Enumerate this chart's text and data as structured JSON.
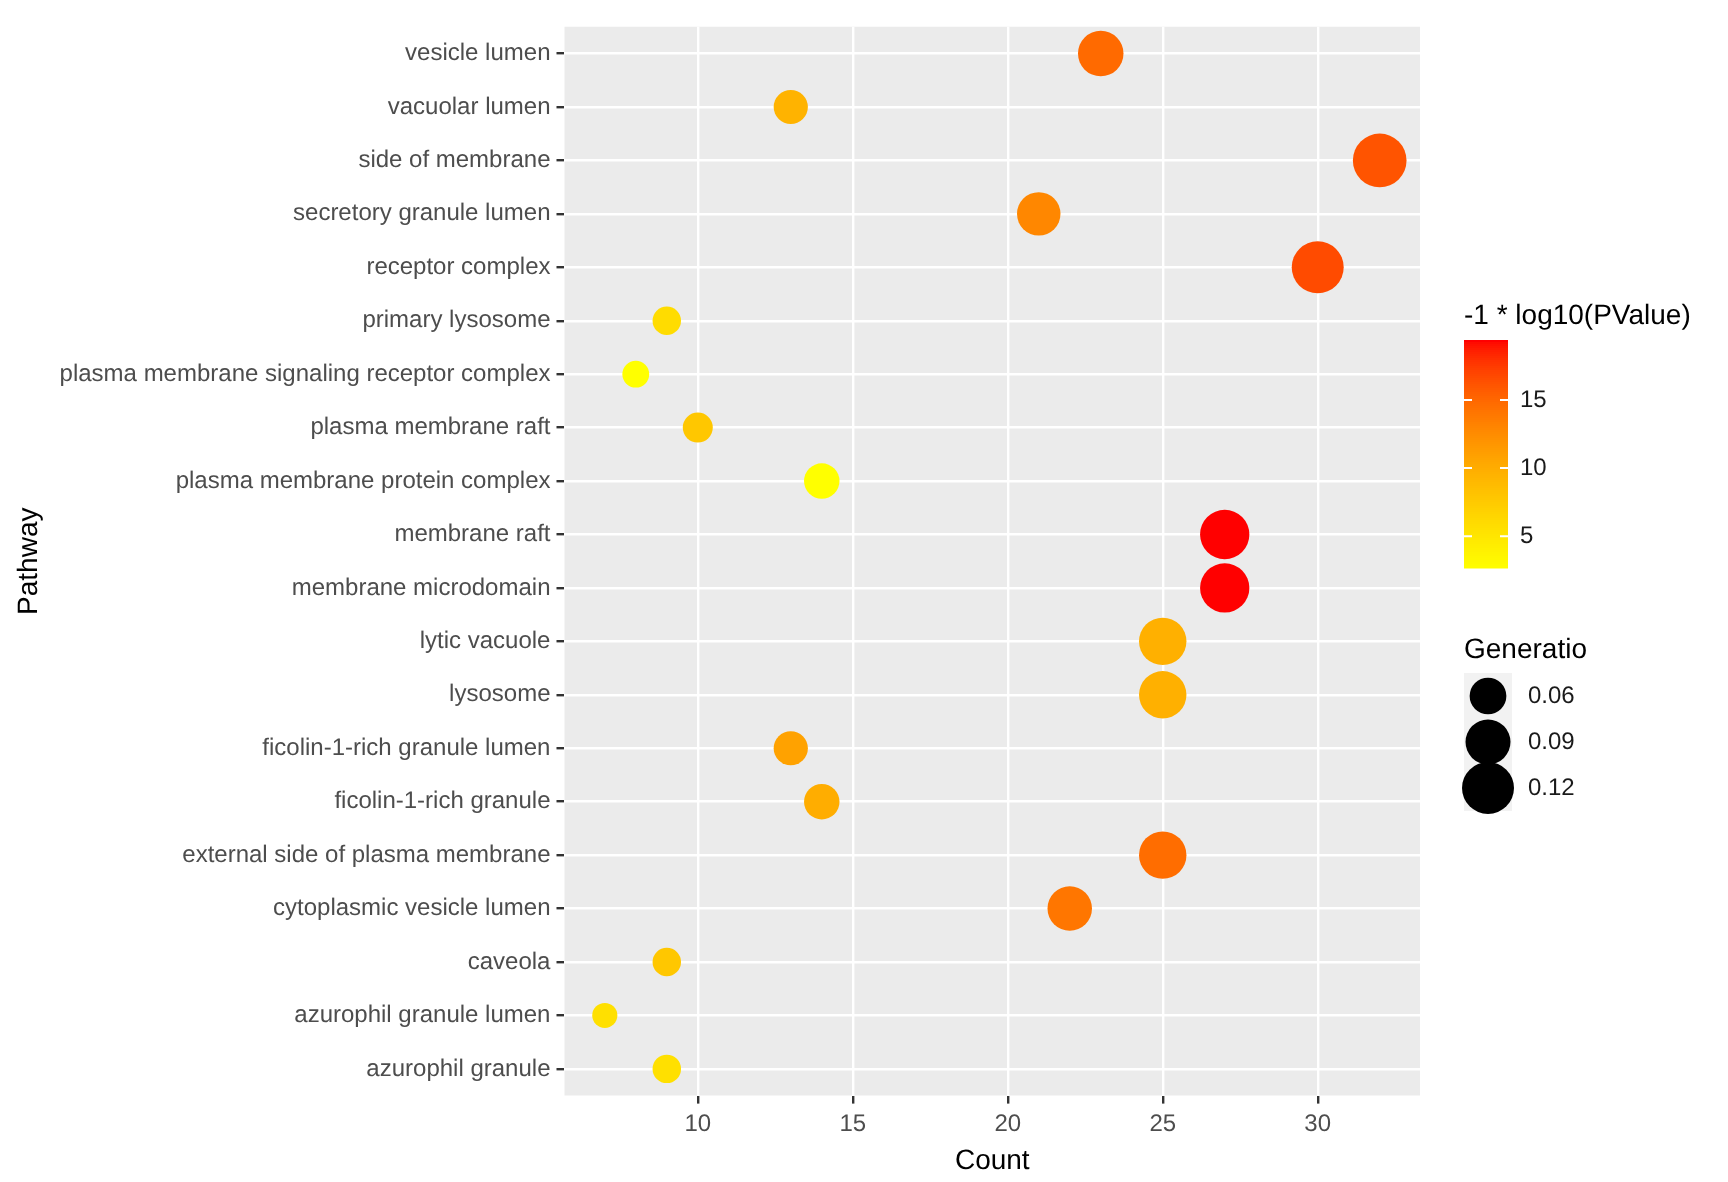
{
  "chart_data": {
    "type": "bubble",
    "xlabel": "Count",
    "ylabel": "Pathway",
    "clabel": "-1 * log10(PValue)",
    "legend_title": "Generatio",
    "categories": [
      "vesicle lumen",
      "vacuolar lumen",
      "side of membrane",
      "secretory granule lumen",
      "receptor complex",
      "primary lysosome",
      "plasma membrane signaling receptor complex",
      "plasma membrane raft",
      "plasma membrane protein complex",
      "membrane raft",
      "membrane microdomain",
      "lytic vacuole",
      "lysosome",
      "ficolin-1-rich granule lumen",
      "ficolin-1-rich granule",
      "external side of plasma membrane",
      "cytoplasmic vesicle lumen",
      "caveola",
      "azurophil granule lumen",
      "azurophil granule"
    ],
    "values": [
      23,
      13,
      32,
      21,
      30,
      9,
      8,
      10,
      14,
      27,
      27,
      25,
      25,
      13,
      14,
      25,
      22,
      9,
      7,
      9
    ],
    "cvalues": [
      14.9,
      9.5,
      16.2,
      12.9,
      16.7,
      6.0,
      2.7,
      7.8,
      2.7,
      19.4,
      19.4,
      9.8,
      9.8,
      10.9,
      10.0,
      14.7,
      14.1,
      7.8,
      5.6,
      5.6
    ],
    "sizes": [
      0.092,
      0.052,
      0.128,
      0.084,
      0.12,
      0.036,
      0.032,
      0.04,
      0.056,
      0.108,
      0.108,
      0.1,
      0.1,
      0.052,
      0.056,
      0.1,
      0.088,
      0.036,
      0.028,
      0.036
    ],
    "size_legend": [
      0.06,
      0.09,
      0.12
    ],
    "clim": [
      2.66,
      19.4
    ],
    "cticks": [
      5,
      10,
      15
    ],
    "xlim": [
      5.7,
      33.3
    ],
    "xticks": [
      10,
      15,
      20,
      25,
      30
    ],
    "orientation": "horizontal",
    "grid": true,
    "marker": "circle"
  }
}
